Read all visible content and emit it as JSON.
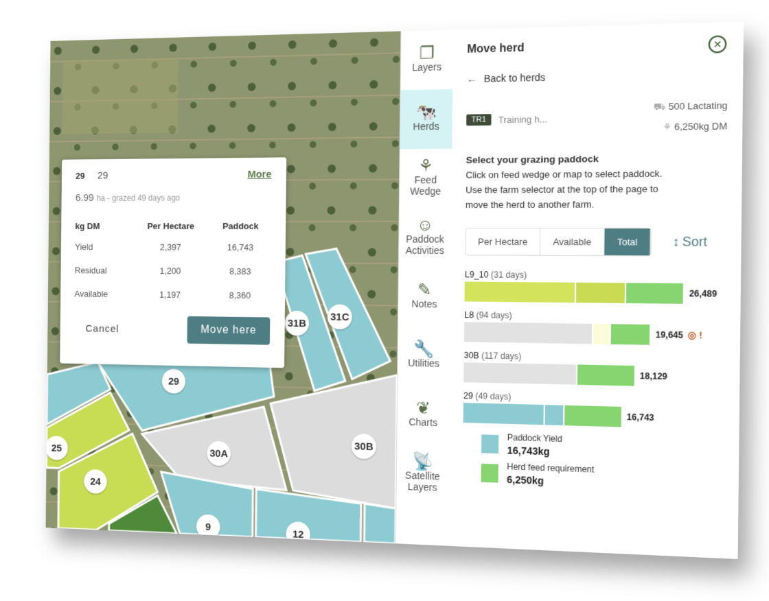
{
  "map": {
    "paddocks": [
      "29",
      "31B",
      "31C",
      "30A",
      "30B",
      "25",
      "24",
      "9",
      "12"
    ]
  },
  "popup": {
    "id_bold": "29",
    "id": "29",
    "more": "More",
    "area": "6.99",
    "area_suffix": "ha - grazed 49 days ago",
    "headers": [
      "kg DM",
      "Per Hectare",
      "Paddock"
    ],
    "rows": [
      [
        "Yield",
        "2,397",
        "16,743"
      ],
      [
        "Residual",
        "1,200",
        "8,383"
      ],
      [
        "Available",
        "1,197",
        "8,360"
      ]
    ],
    "cancel": "Cancel",
    "move": "Move here"
  },
  "rail": [
    {
      "label": "Layers",
      "icon": "layers-icon"
    },
    {
      "label": "Herds",
      "icon": "cow-icon",
      "active": true
    },
    {
      "label": "Feed Wedge",
      "icon": "feed-wedge-icon"
    },
    {
      "label": "Paddock Activities",
      "icon": "farmer-icon"
    },
    {
      "label": "Notes",
      "icon": "pen-icon"
    },
    {
      "label": "Utilities",
      "icon": "wrench-icon"
    },
    {
      "label": "Charts",
      "icon": "chart-icon"
    },
    {
      "label": "Satellite Layers",
      "icon": "satellite-icon"
    }
  ],
  "panel": {
    "title": "Move herd",
    "back": "Back to herds",
    "herd_code": "TR1",
    "herd_name": "Training h...",
    "cows": "500 Lactating",
    "feed": "6,250kg DM",
    "instr_title": "Select your grazing paddock",
    "instr_1": "Click on feed wedge or map to select paddock.",
    "instr_2": "Use the farm selector at the top of the page to",
    "instr_3": "move the herd to another farm.",
    "tabs": [
      "Per Hectare",
      "Available",
      "Total"
    ],
    "active_tab": "Total",
    "sort": "Sort"
  },
  "colors": {
    "teal": "#4e7d84",
    "yield_blue": "#8ccbd1",
    "herd_green": "#86d570",
    "lime": "#d0e35c",
    "grey": "#e2e2e2",
    "pale_yellow": "#fdfbd8"
  },
  "chart_data": {
    "type": "bar",
    "stacked": true,
    "bars": [
      {
        "name": "L9_10",
        "days": "(31 days)",
        "total": "26,489",
        "segments": [
          {
            "color": "#d3e45c",
            "value": 45
          },
          {
            "color": "#c8db52",
            "value": 20
          },
          {
            "color": "#86d570",
            "value": 23
          }
        ]
      },
      {
        "name": "L8",
        "days": "(94 days)",
        "total": "19,645",
        "warning": "!",
        "segments": [
          {
            "color": "#e2e2e2",
            "value": 52
          },
          {
            "color": "#fdfbd8",
            "value": 7
          },
          {
            "color": "#86d570",
            "value": 16
          }
        ]
      },
      {
        "name": "30B",
        "days": "(117 days)",
        "total": "18,129",
        "segments": [
          {
            "color": "#e2e2e2",
            "value": 46
          },
          {
            "color": "#86d570",
            "value": 23
          }
        ]
      },
      {
        "name": "29",
        "days": "(49 days)",
        "total": "16,743",
        "segments": [
          {
            "color": "#8ccbd1",
            "value": 33
          },
          {
            "color": "#8ccbd1",
            "value": 8
          },
          {
            "color": "#86d570",
            "value": 23
          }
        ]
      }
    ],
    "legend": [
      {
        "label": "Paddock Yield",
        "value": "16,743kg",
        "color": "#8ccbd1"
      },
      {
        "label": "Herd feed requirement",
        "value": "6,250kg",
        "color": "#86d570"
      }
    ]
  }
}
